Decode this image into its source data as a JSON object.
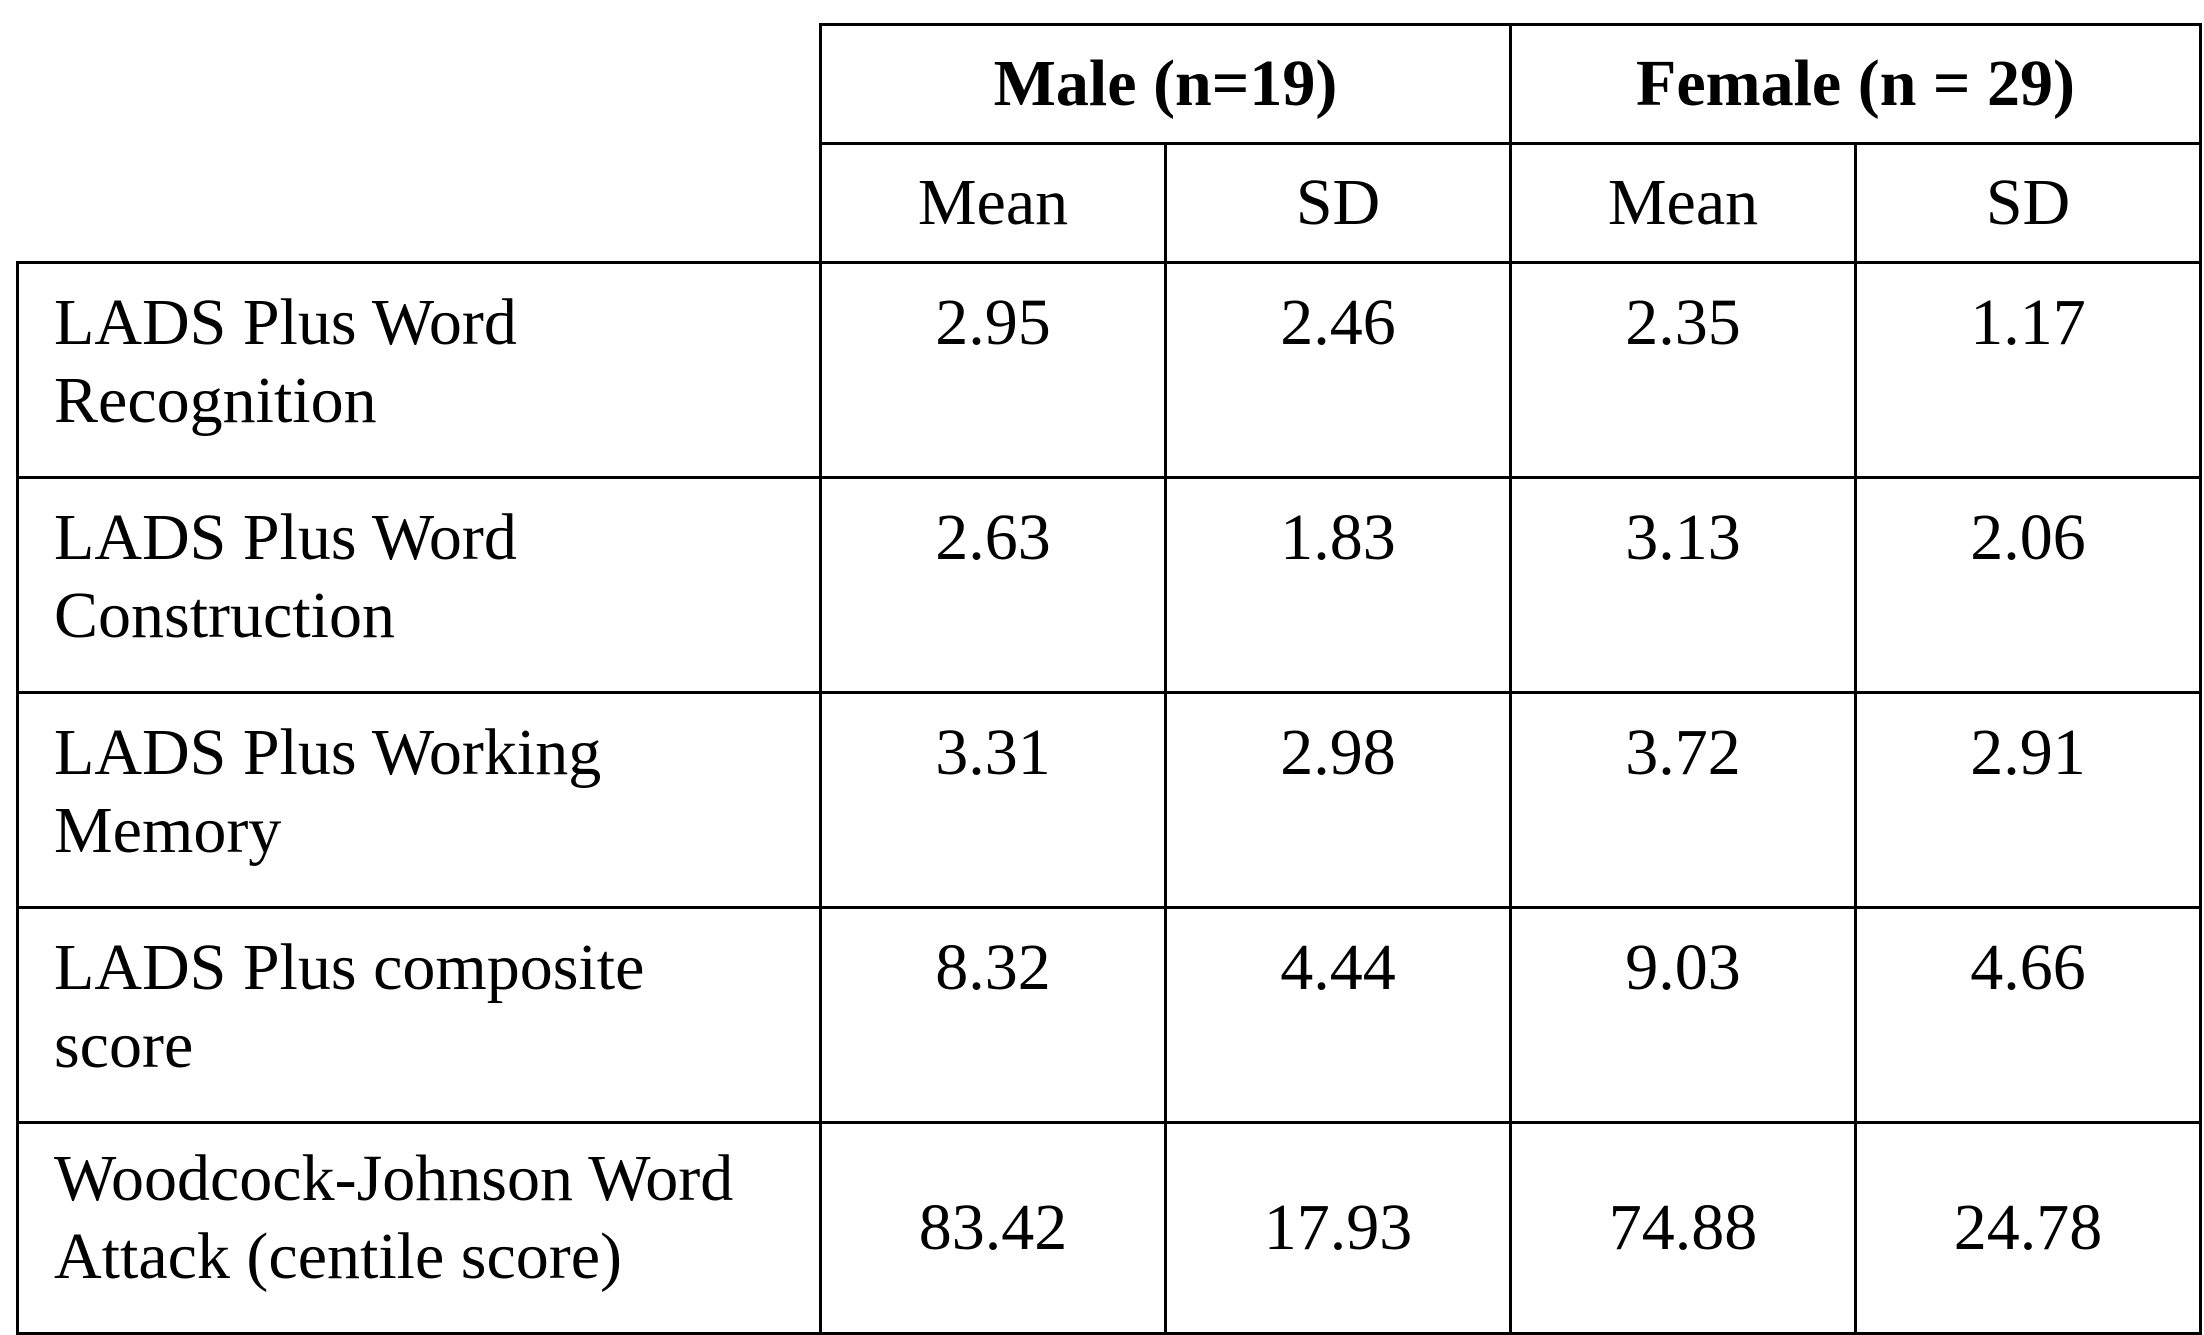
{
  "table": {
    "groups": [
      {
        "label": "Male (n=19)"
      },
      {
        "label": "Female (n = 29)"
      }
    ],
    "subheaders": [
      "Mean",
      "SD",
      "Mean",
      "SD"
    ],
    "rows": [
      {
        "label_line1": "LADS Plus Word",
        "label_line2": "Recognition",
        "values": [
          "2.95",
          "2.46",
          "2.35",
          "1.17"
        ]
      },
      {
        "label_line1": "LADS Plus Word",
        "label_line2": "Construction",
        "values": [
          "2.63",
          "1.83",
          "3.13",
          "2.06"
        ]
      },
      {
        "label_line1": "LADS Plus Working",
        "label_line2": "Memory",
        "values": [
          "3.31",
          "2.98",
          "3.72",
          "2.91"
        ]
      },
      {
        "label_line1": "LADS Plus composite",
        "label_line2": "score",
        "values": [
          "8.32",
          "4.44",
          "9.03",
          "4.66"
        ]
      },
      {
        "label_line1": "Woodcock-Johnson Word",
        "label_line2": "Attack (centile score)",
        "values": [
          "83.42",
          "17.93",
          "74.88",
          "24.78"
        ]
      }
    ]
  }
}
